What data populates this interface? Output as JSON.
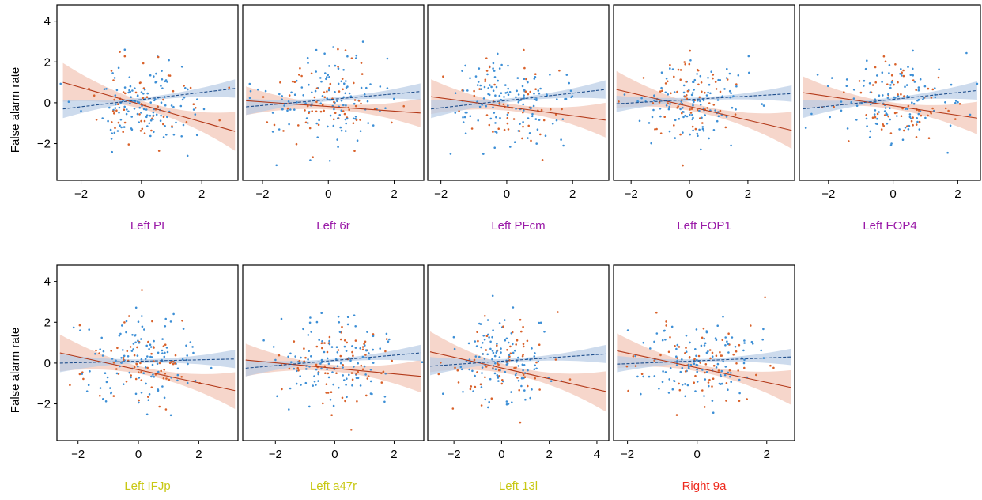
{
  "figure": {
    "ylabel": "False alarm rate",
    "colors": {
      "blue_points": "#3d8fd6",
      "blue_line": "#1f4e8c",
      "blue_band": "#b8cce6",
      "red_points": "#d9622b",
      "red_line": "#b33a1a",
      "red_band": "#f2c4b5",
      "purple_label": "#9a1aa8",
      "yellow_label": "#c8c814",
      "red_label": "#ee2a1e"
    }
  },
  "chart_data": [
    {
      "type": "scatter",
      "title": "Left PI",
      "title_color": "#9a1aa8",
      "xlim": [
        -2.8,
        3.2
      ],
      "ylim": [
        -3.8,
        4.8
      ],
      "xticks": [
        -2,
        0,
        2
      ],
      "yticks": [
        4,
        2,
        0,
        -2
      ],
      "seed": 11,
      "blue_fit": {
        "x": [
          -2.6,
          3.1
        ],
        "y": [
          -0.3,
          0.7
        ],
        "band_half_width": 0.45
      },
      "red_fit": {
        "x": [
          -2.6,
          3.1
        ],
        "y": [
          1.0,
          -1.4
        ],
        "band_half_width": 0.95
      }
    },
    {
      "type": "scatter",
      "title": "Left 6r",
      "title_color": "#9a1aa8",
      "xlim": [
        -2.6,
        2.9
      ],
      "ylim": [
        -3.8,
        4.8
      ],
      "xticks": [
        -2,
        0,
        2
      ],
      "yticks": [],
      "seed": 23,
      "blue_fit": {
        "x": [
          -2.5,
          2.8
        ],
        "y": [
          -0.2,
          0.55
        ],
        "band_half_width": 0.4
      },
      "red_fit": {
        "x": [
          -2.5,
          2.8
        ],
        "y": [
          0.1,
          -0.5
        ],
        "band_half_width": 0.7
      }
    },
    {
      "type": "scatter",
      "title": "Left PFcm",
      "title_color": "#9a1aa8",
      "xlim": [
        -2.4,
        3.1
      ],
      "ylim": [
        -3.8,
        4.8
      ],
      "xticks": [
        -2,
        0,
        2
      ],
      "yticks": [],
      "seed": 37,
      "blue_fit": {
        "x": [
          -2.3,
          3.0
        ],
        "y": [
          -0.3,
          0.65
        ],
        "band_half_width": 0.45
      },
      "red_fit": {
        "x": [
          -2.3,
          3.0
        ],
        "y": [
          0.3,
          -0.85
        ],
        "band_half_width": 0.85
      }
    },
    {
      "type": "scatter",
      "title": "Left FOP1",
      "title_color": "#9a1aa8",
      "xlim": [
        -2.6,
        3.6
      ],
      "ylim": [
        -3.8,
        4.8
      ],
      "xticks": [
        -2,
        0,
        2
      ],
      "yticks": [],
      "seed": 41,
      "blue_fit": {
        "x": [
          -2.5,
          3.5
        ],
        "y": [
          -0.05,
          0.45
        ],
        "band_half_width": 0.4
      },
      "red_fit": {
        "x": [
          -2.5,
          3.5
        ],
        "y": [
          0.65,
          -1.35
        ],
        "band_half_width": 0.9
      }
    },
    {
      "type": "scatter",
      "title": "Left FOP4",
      "title_color": "#9a1aa8",
      "xlim": [
        -2.9,
        2.7
      ],
      "ylim": [
        -3.8,
        4.8
      ],
      "xticks": [
        -2,
        0,
        2
      ],
      "yticks": [],
      "seed": 53,
      "blue_fit": {
        "x": [
          -2.8,
          2.6
        ],
        "y": [
          -0.3,
          0.6
        ],
        "band_half_width": 0.45
      },
      "red_fit": {
        "x": [
          -2.8,
          2.6
        ],
        "y": [
          0.5,
          -0.75
        ],
        "band_half_width": 0.8
      }
    },
    {
      "type": "scatter",
      "title": "Left IFJp",
      "title_color": "#c8c814",
      "xlim": [
        -2.7,
        3.3
      ],
      "ylim": [
        -3.8,
        4.8
      ],
      "xticks": [
        -2,
        0,
        2
      ],
      "yticks": [
        4,
        2,
        0,
        -2
      ],
      "seed": 67,
      "blue_fit": {
        "x": [
          -2.6,
          3.2
        ],
        "y": [
          0.0,
          0.2
        ],
        "band_half_width": 0.45
      },
      "red_fit": {
        "x": [
          -2.6,
          3.2
        ],
        "y": [
          0.5,
          -1.35
        ],
        "band_half_width": 0.9
      }
    },
    {
      "type": "scatter",
      "title": "Left a47r",
      "title_color": "#c8c814",
      "xlim": [
        -3.1,
        3.0
      ],
      "ylim": [
        -3.8,
        4.8
      ],
      "xticks": [
        -2,
        0,
        2
      ],
      "yticks": [],
      "seed": 79,
      "blue_fit": {
        "x": [
          -3.0,
          2.9
        ],
        "y": [
          -0.25,
          0.5
        ],
        "band_half_width": 0.4
      },
      "red_fit": {
        "x": [
          -3.0,
          2.9
        ],
        "y": [
          0.15,
          -0.65
        ],
        "band_half_width": 0.8
      }
    },
    {
      "type": "scatter",
      "title": "Left 13l",
      "title_color": "#c8c814",
      "xlim": [
        -3.1,
        4.5
      ],
      "ylim": [
        -3.8,
        4.8
      ],
      "xticks": [
        -2,
        0,
        2,
        4
      ],
      "yticks": [],
      "seed": 83,
      "blue_fit": {
        "x": [
          -3.0,
          4.4
        ],
        "y": [
          -0.15,
          0.45
        ],
        "band_half_width": 0.45
      },
      "red_fit": {
        "x": [
          -3.0,
          4.4
        ],
        "y": [
          0.55,
          -1.4
        ],
        "band_half_width": 1.0
      }
    },
    {
      "type": "scatter",
      "title": "Right 9a",
      "title_color": "#ee2a1e",
      "xlim": [
        -2.4,
        2.8
      ],
      "ylim": [
        -3.8,
        4.8
      ],
      "xticks": [
        -2,
        0,
        2
      ],
      "yticks": [],
      "seed": 97,
      "blue_fit": {
        "x": [
          -2.3,
          2.7
        ],
        "y": [
          -0.05,
          0.3
        ],
        "band_half_width": 0.4
      },
      "red_fit": {
        "x": [
          -2.3,
          2.7
        ],
        "y": [
          0.6,
          -1.2
        ],
        "band_half_width": 0.85
      }
    }
  ]
}
